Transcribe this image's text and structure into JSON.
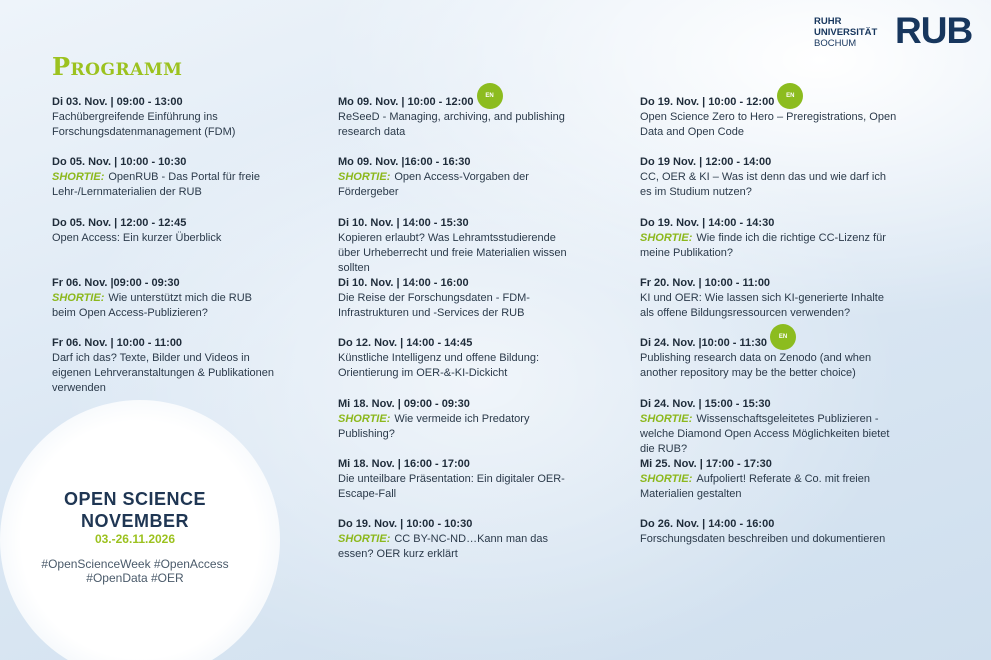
{
  "logo": {
    "lines": [
      "RUHR",
      "UNIVERSITÄT",
      "BOCHUM"
    ],
    "mark": "RUB"
  },
  "title": "Programm",
  "columns": [
    {
      "events": [
        {
          "date": "Di 03. Nov. | 09:00 - 13:00",
          "text": "Fachübergreifende Einführung ins Forschungsdatenmanagement (FDM)"
        },
        {
          "date": "Do 05. Nov. | 10:00 - 10:30",
          "tag": "SHORTIE:",
          "text": "OpenRUB - Das Portal für freie Lehr-/Lernmaterialien der RUB"
        },
        {
          "date": "Do 05. Nov. | 12:00 - 12:45",
          "text": "Open Access: Ein kurzer Überblick"
        },
        {
          "date": "Fr 06. Nov. |09:00 - 09:30",
          "tag": "SHORTIE:",
          "text": "Wie unterstützt mich die RUB beim Open Access-Publizieren?"
        },
        {
          "date": "Fr 06. Nov. | 10:00 - 11:00",
          "text": "Darf ich das? Texte, Bilder und Videos in eigenen Lehrveranstaltungen & Publikationen verwenden"
        }
      ]
    },
    {
      "events": [
        {
          "date": "Mo 09. Nov. | 10:00 - 12:00",
          "badge": "EN",
          "text": "ReSeeD - Managing, archiving, and publishing research data"
        },
        {
          "date": "Mo 09. Nov. |16:00 - 16:30",
          "tag": "SHORTIE:",
          "text": "Open Access-Vorgaben der Fördergeber"
        },
        {
          "date": "Di 10. Nov. | 14:00 - 15:30",
          "text": "Kopieren erlaubt? Was Lehramtsstudierende über Urheberrecht und freie Materialien wissen sollten"
        },
        {
          "date": "Di 10. Nov. | 14:00 - 16:00",
          "text": "Die Reise der Forschungsdaten - FDM-Infrastrukturen und -Services der RUB"
        },
        {
          "date": "Do 12. Nov. | 14:00 - 14:45",
          "text": "Künstliche Intelligenz und offene Bildung: Orientierung im OER-&-KI-Dickicht"
        },
        {
          "date": "Mi 18. Nov. | 09:00 - 09:30",
          "tag": "SHORTIE:",
          "text": "Wie vermeide ich Predatory Publishing?"
        },
        {
          "date": "Mi 18. Nov. | 16:00 - 17:00",
          "text": "Die unteilbare Präsentation: Ein digitaler OER-Escape-Fall"
        },
        {
          "date": "Do 19. Nov. | 10:00 - 10:30",
          "tag": "SHORTIE:",
          "text": "CC BY-NC-ND…Kann man das essen? OER kurz erklärt"
        }
      ]
    },
    {
      "events": [
        {
          "date": "Do 19. Nov. | 10:00 - 12:00",
          "badge": "EN",
          "text": "Open Science Zero to Hero – Preregistrations, Open Data and Open Code"
        },
        {
          "date": "Do 19 Nov. | 12:00 - 14:00",
          "text": "CC, OER & KI – Was ist denn das und wie darf ich es im Studium nutzen?"
        },
        {
          "date": "Do 19. Nov. | 14:00 - 14:30",
          "tag": "SHORTIE:",
          "text": "Wie finde ich die richtige CC-Lizenz für meine Publikation?"
        },
        {
          "date": "Fr 20. Nov. | 10:00 - 11:00",
          "text": "KI und OER: Wie lassen sich KI-generierte Inhalte als offene Bildungsressourcen verwenden?"
        },
        {
          "date": "Di 24. Nov. |10:00 - 11:30",
          "badge": "EN",
          "text": "Publishing research data on Zenodo (and when another repository may be the better choice)"
        },
        {
          "date": "Di 24. Nov. | 15:00 - 15:30",
          "tag": "SHORTIE:",
          "text": "Wissenschaftsgeleitetes Publizieren - welche Diamond Open Access Möglichkeiten bietet die RUB?"
        },
        {
          "date": "Mi 25. Nov. | 17:00 - 17:30",
          "tag": "SHORTIE:",
          "text": "Aufpoliert! Referate & Co. mit freien Materialien gestalten"
        },
        {
          "date": "Do 26. Nov. | 14:00 - 16:00",
          "text": "Forschungsdaten beschreiben und dokumentieren"
        }
      ]
    }
  ],
  "event_badge": {
    "lines": [
      "OPEN SCIENCE",
      "NOVEMBER"
    ],
    "dates": "03.-26.11.2026",
    "hashtags": [
      "#OpenScienceWeek #OpenAccess",
      "#OpenData #OER"
    ]
  }
}
